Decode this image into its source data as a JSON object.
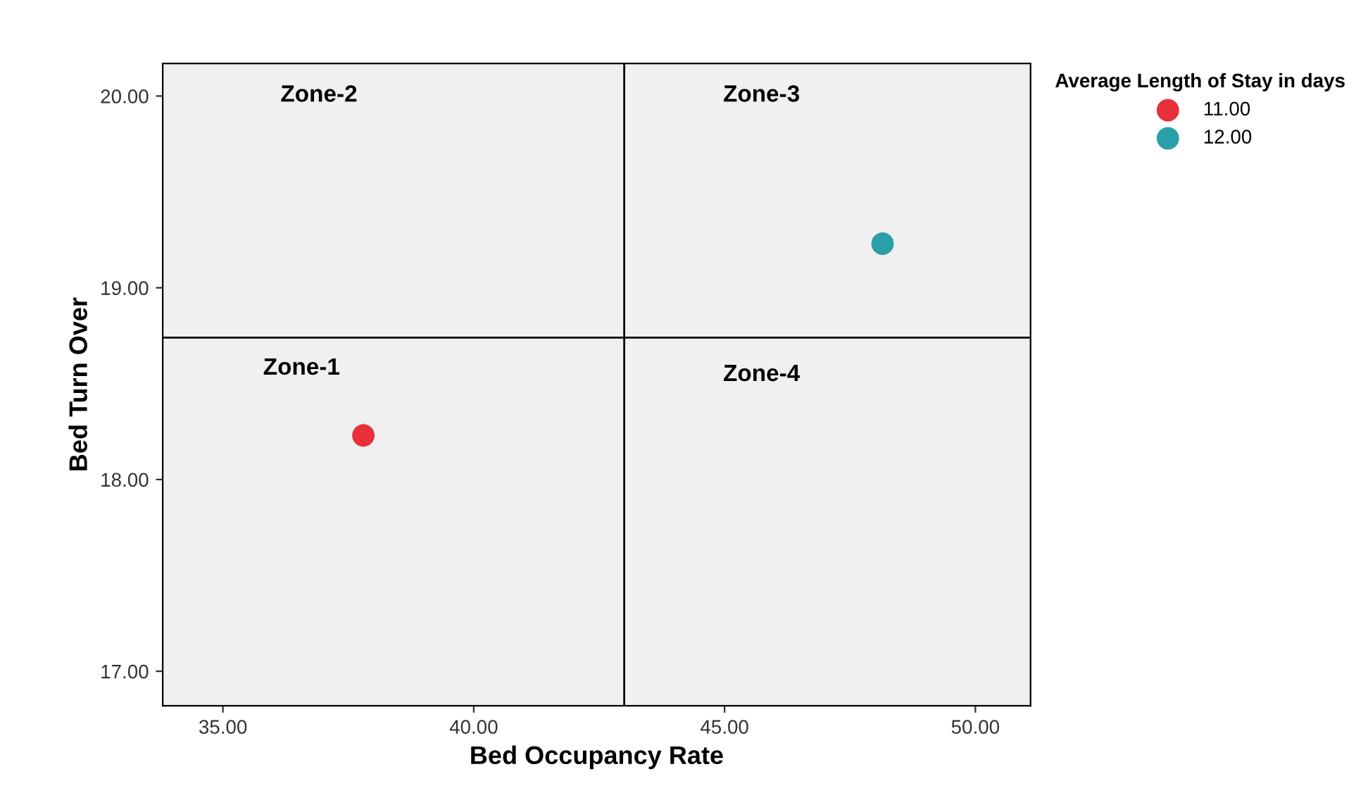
{
  "chart_data": {
    "type": "scatter",
    "xlabel": "Bed Occupancy Rate",
    "ylabel": "Bed Turn Over",
    "legend_title": "Average Length of Stay in days",
    "legend": "top right",
    "marker": "circle",
    "grid": false,
    "xlim": [
      33.8,
      51.1
    ],
    "ylim": [
      16.82,
      20.17
    ],
    "xticks": [
      {
        "value": 35,
        "label": "35.00"
      },
      {
        "value": 40,
        "label": "40.00"
      },
      {
        "value": 45,
        "label": "45.00"
      },
      {
        "value": 50,
        "label": "50.00"
      }
    ],
    "yticks": [
      {
        "value": 17,
        "label": "17.00"
      },
      {
        "value": 18,
        "label": "18.00"
      },
      {
        "value": 19,
        "label": "19.00"
      },
      {
        "value": 20,
        "label": "20.00"
      }
    ],
    "series": [
      {
        "name": "11.00",
        "color": "#e8303a",
        "x": [
          37.8
        ],
        "values": [
          18.23
        ]
      },
      {
        "name": "12.00",
        "color": "#2a9fa8",
        "x": [
          48.15
        ],
        "values": [
          19.23
        ]
      }
    ],
    "ref_lines": [
      {
        "axis": "x",
        "value": 43,
        "color": "#000000"
      },
      {
        "axis": "y",
        "value": 18.74,
        "color": "#000000"
      }
    ],
    "annotations": [
      "Zone-2",
      "Zone-3",
      "Zone-1",
      "Zone-4"
    ]
  }
}
